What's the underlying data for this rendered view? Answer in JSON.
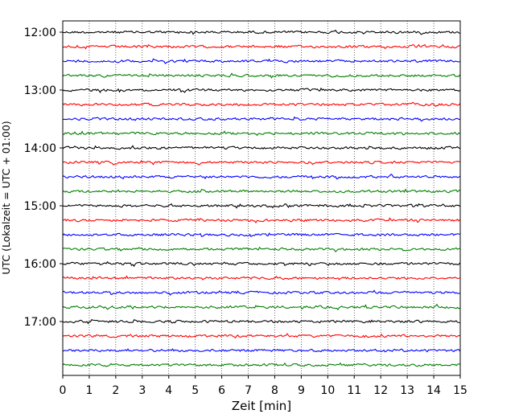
{
  "chart_data": {
    "type": "line",
    "title": "",
    "xlabel": "Zeit  [min]",
    "ylabel": "UTC (Lokalzeit = UTC + 01:00)",
    "xlim": [
      0,
      15
    ],
    "x_ticks": [
      0,
      1,
      2,
      3,
      4,
      5,
      6,
      7,
      8,
      9,
      10,
      11,
      12,
      13,
      14,
      15
    ],
    "y_tick_labels": [
      "12:00",
      "13:00",
      "14:00",
      "15:00",
      "16:00",
      "17:00"
    ],
    "y_tick_trace_index": [
      0,
      4,
      8,
      12,
      16,
      20
    ],
    "grid": "vertical dotted",
    "trace_interval_min": 15,
    "start_time": "12:00",
    "trace_count": 24,
    "trace_colors": [
      "#000000",
      "#ff0000",
      "#0000ff",
      "#008000"
    ]
  }
}
